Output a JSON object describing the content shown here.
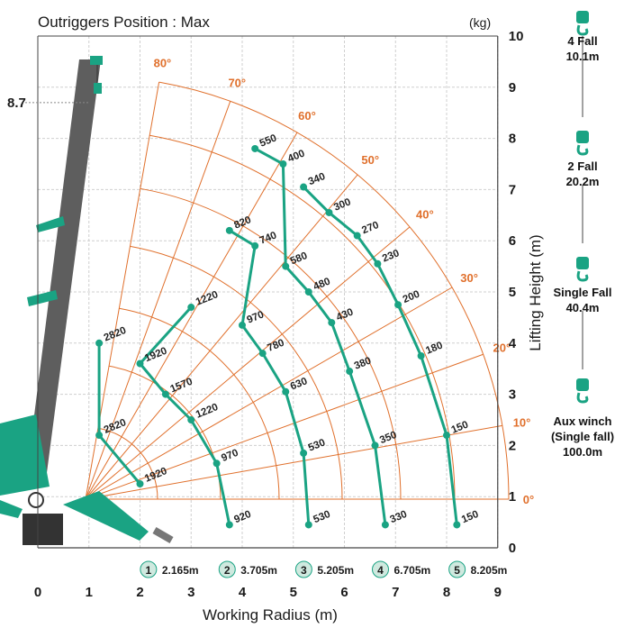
{
  "chart_data": {
    "type": "line",
    "title": "Outriggers Position : Max",
    "unit_label": "(kg)",
    "xlabel": "Working Radius (m)",
    "ylabel": "Lifting Height (m)",
    "xlim": [
      0,
      9
    ],
    "ylim": [
      0,
      10
    ],
    "x_ticks": [
      "0",
      "1",
      "2",
      "3",
      "4",
      "5",
      "6",
      "7",
      "8",
      "9"
    ],
    "y_ticks": [
      "0",
      "1",
      "2",
      "3",
      "4",
      "5",
      "6",
      "7",
      "8",
      "9",
      "10"
    ],
    "max_height_marker": {
      "label": "8.7",
      "y": 8.7
    },
    "boom_angles": [
      {
        "label": "80°",
        "angle": 80
      },
      {
        "label": "70°",
        "angle": 70
      },
      {
        "label": "60°",
        "angle": 60
      },
      {
        "label": "50°",
        "angle": 50
      },
      {
        "label": "40°",
        "angle": 40
      },
      {
        "label": "30°",
        "angle": 30
      },
      {
        "label": "20°",
        "angle": 20
      },
      {
        "label": "10°",
        "angle": 10
      },
      {
        "label": "0°",
        "angle": 0
      }
    ],
    "boom_sections": [
      {
        "number": "1",
        "length_label": "2.165m",
        "x": 2.165,
        "loads": [
          {
            "label": "2820",
            "x": 1.2,
            "y": 4.0
          },
          {
            "label": "2820",
            "x": 1.2,
            "y": 2.2
          },
          {
            "label": "1920",
            "x": 2.0,
            "y": 1.25
          }
        ]
      },
      {
        "number": "2",
        "length_label": "3.705m",
        "x": 3.705,
        "loads": [
          {
            "label": "1220",
            "x": 3.0,
            "y": 4.7
          },
          {
            "label": "1920",
            "x": 2.0,
            "y": 3.6
          },
          {
            "label": "1570",
            "x": 2.5,
            "y": 3.0
          },
          {
            "label": "1220",
            "x": 3.0,
            "y": 2.5
          },
          {
            "label": "970",
            "x": 3.5,
            "y": 1.65
          },
          {
            "label": "920",
            "x": 3.75,
            "y": 0.45
          }
        ]
      },
      {
        "number": "3",
        "length_label": "5.205m",
        "x": 5.205,
        "loads": [
          {
            "label": "820",
            "x": 3.75,
            "y": 6.2
          },
          {
            "label": "740",
            "x": 4.25,
            "y": 5.9
          },
          {
            "label": "970",
            "x": 4.0,
            "y": 4.35
          },
          {
            "label": "780",
            "x": 4.4,
            "y": 3.8
          },
          {
            "label": "630",
            "x": 4.85,
            "y": 3.05
          },
          {
            "label": "530",
            "x": 5.2,
            "y": 1.85
          },
          {
            "label": "530",
            "x": 5.3,
            "y": 0.45
          }
        ]
      },
      {
        "number": "4",
        "length_label": "6.705m",
        "x": 6.705,
        "loads": [
          {
            "label": "550",
            "x": 4.25,
            "y": 7.8
          },
          {
            "label": "400",
            "x": 4.8,
            "y": 7.5
          },
          {
            "label": "580",
            "x": 4.85,
            "y": 5.5
          },
          {
            "label": "480",
            "x": 5.3,
            "y": 5.0
          },
          {
            "label": "430",
            "x": 5.75,
            "y": 4.4
          },
          {
            "label": "380",
            "x": 6.1,
            "y": 3.45
          },
          {
            "label": "350",
            "x": 6.6,
            "y": 2.0
          },
          {
            "label": "330",
            "x": 6.8,
            "y": 0.45
          }
        ]
      },
      {
        "number": "5",
        "length_label": "8.205m",
        "x": 8.205,
        "loads": [
          {
            "label": "340",
            "x": 5.2,
            "y": 7.05
          },
          {
            "label": "300",
            "x": 5.7,
            "y": 6.55
          },
          {
            "label": "270",
            "x": 6.25,
            "y": 6.1
          },
          {
            "label": "230",
            "x": 6.65,
            "y": 5.55
          },
          {
            "label": "200",
            "x": 7.05,
            "y": 4.75
          },
          {
            "label": "180",
            "x": 7.5,
            "y": 3.75
          },
          {
            "label": "150",
            "x": 8.0,
            "y": 2.2
          },
          {
            "label": "150",
            "x": 8.2,
            "y": 0.45
          }
        ]
      }
    ],
    "hook_configurations": [
      {
        "label": "4 Fall",
        "length": "10.1m"
      },
      {
        "label": "2 Fall",
        "length": "20.2m"
      },
      {
        "label": "Single Fall",
        "length": "40.4m"
      },
      {
        "label": "Aux winch",
        "sub_label": "(Single fall)",
        "length": "100.0m"
      }
    ]
  },
  "colors": {
    "boom_curve": "#1aa383",
    "angle_line": "#e0702c",
    "boom_body": "#5e5e5e",
    "crane_body": "#1aa383",
    "grid": "#cfcfcf",
    "axis_text": "#1a1a1a"
  }
}
